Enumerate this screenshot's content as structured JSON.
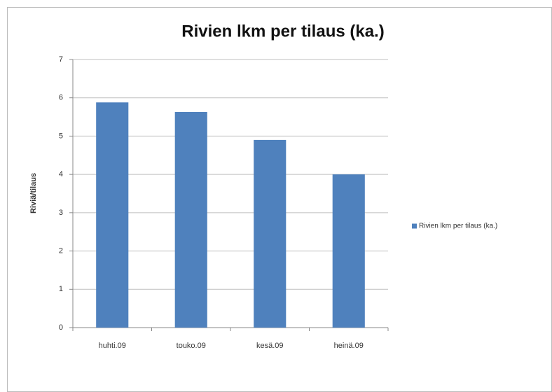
{
  "chart_data": {
    "type": "bar",
    "title": "Rivien lkm per tilaus (ka.)",
    "y_label": "Riviä/tilaus",
    "categories": [
      "huhti.09",
      "touko.09",
      "kesä.09",
      "heinä.09"
    ],
    "series": [
      {
        "name": "Rivien lkm per tilaus (ka.)",
        "color": "#4f81bd",
        "values": [
          5.88,
          5.63,
          4.9,
          4.0
        ]
      }
    ],
    "ylim": [
      0,
      7
    ],
    "yticks": [
      0,
      1,
      2,
      3,
      4,
      5,
      6,
      7
    ],
    "grid": true,
    "legend": "right"
  }
}
